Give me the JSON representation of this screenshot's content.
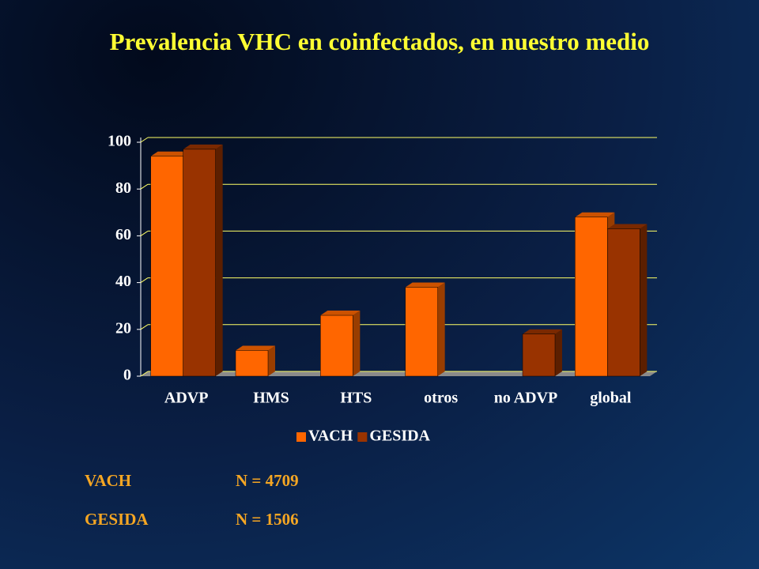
{
  "chart_data": {
    "type": "bar",
    "title": "Prevalencia VHC en coinfectados, en nuestro medio",
    "categories": [
      "ADVP",
      "HMS",
      "HTS",
      "otros",
      "no ADVP",
      "global"
    ],
    "series": [
      {
        "name": "VACH",
        "color": "#ff6600",
        "values": [
          94,
          11,
          26,
          38,
          null,
          68
        ]
      },
      {
        "name": "GESIDA",
        "color": "#993300",
        "values": [
          97,
          null,
          null,
          null,
          18,
          63
        ]
      }
    ],
    "ylim": [
      0,
      100
    ],
    "yticks": [
      0,
      20,
      40,
      60,
      80,
      100
    ],
    "grid": true,
    "legend": "bottom"
  },
  "footnotes": [
    {
      "label": "VACH",
      "text": "N = 4709"
    },
    {
      "label": "GESIDA",
      "text": "N = 1506"
    }
  ]
}
